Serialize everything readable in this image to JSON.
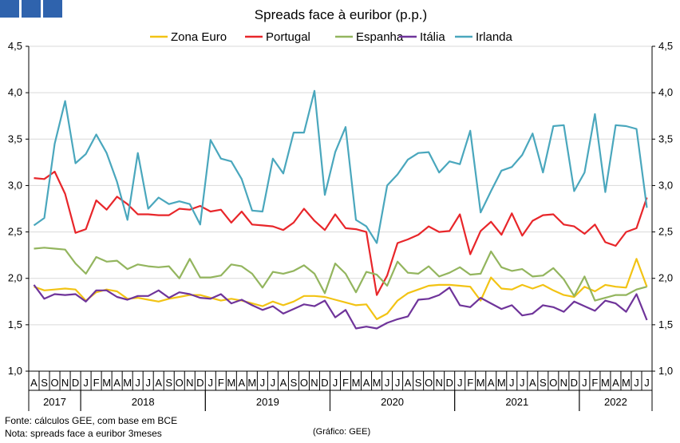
{
  "logo": {
    "colors": [
      "#2f63ad",
      "#2f63ad",
      "#2f63ad"
    ]
  },
  "footer": {
    "source": "Fonte: cálculos GEE, com base em BCE",
    "note": "Nota: spreads face a euribor 3meses",
    "credit": "(Gráfico: GEE)"
  },
  "chart_data": {
    "type": "line",
    "title": "Spreads face à euribor (p.p.)",
    "ylim": [
      1.0,
      4.5
    ],
    "yticks": [
      "1,0",
      "1,5",
      "2,0",
      "2,5",
      "3,0",
      "3,5",
      "4,0",
      "4,5"
    ],
    "grid": true,
    "legend_position": "top",
    "months": [
      "A",
      "S",
      "O",
      "N",
      "D",
      "J",
      "F",
      "M",
      "A",
      "M",
      "J",
      "J",
      "A",
      "S",
      "O",
      "N",
      "D",
      "J",
      "F",
      "M",
      "A",
      "M",
      "J",
      "J",
      "A",
      "S",
      "O",
      "N",
      "D",
      "J",
      "F",
      "M",
      "A",
      "M",
      "J",
      "J",
      "A",
      "S",
      "O",
      "N",
      "D",
      "J",
      "F",
      "M",
      "A",
      "M",
      "J",
      "J",
      "A",
      "S",
      "O",
      "N",
      "D",
      "J",
      "F",
      "M",
      "A",
      "M",
      "J",
      "J"
    ],
    "years": [
      {
        "label": "2017",
        "start": 0,
        "end": 4
      },
      {
        "label": "2018",
        "start": 5,
        "end": 16
      },
      {
        "label": "2019",
        "start": 17,
        "end": 28
      },
      {
        "label": "2020",
        "start": 29,
        "end": 40
      },
      {
        "label": "2021",
        "start": 41,
        "end": 52
      },
      {
        "label": "2022",
        "start": 53,
        "end": 59
      }
    ],
    "series": [
      {
        "name": "Zona Euro",
        "color": "#f2c314",
        "values": [
          1.91,
          1.87,
          1.88,
          1.89,
          1.88,
          1.76,
          1.85,
          1.88,
          1.86,
          1.78,
          1.79,
          1.77,
          1.75,
          1.78,
          1.8,
          1.82,
          1.82,
          1.79,
          1.76,
          1.78,
          1.76,
          1.73,
          1.7,
          1.75,
          1.71,
          1.75,
          1.81,
          1.81,
          1.8,
          1.77,
          1.74,
          1.71,
          1.72,
          1.56,
          1.62,
          1.76,
          1.84,
          1.88,
          1.92,
          1.93,
          1.93,
          1.92,
          1.91,
          1.76,
          2.01,
          1.89,
          1.88,
          1.93,
          1.89,
          1.93,
          1.87,
          1.82,
          1.8,
          1.91,
          1.86,
          1.93,
          1.91,
          1.9,
          2.21,
          1.91
        ]
      },
      {
        "name": "Portugal",
        "color": "#e8262a",
        "values": [
          3.08,
          3.07,
          3.15,
          2.91,
          2.49,
          2.53,
          2.84,
          2.74,
          2.88,
          2.8,
          2.69,
          2.69,
          2.68,
          2.68,
          2.75,
          2.74,
          2.78,
          2.72,
          2.74,
          2.6,
          2.72,
          2.58,
          2.57,
          2.56,
          2.52,
          2.6,
          2.75,
          2.62,
          2.52,
          2.69,
          2.54,
          2.53,
          2.5,
          1.82,
          2.03,
          2.38,
          2.42,
          2.47,
          2.56,
          2.5,
          2.51,
          2.69,
          2.26,
          2.51,
          2.61,
          2.47,
          2.7,
          2.46,
          2.62,
          2.68,
          2.69,
          2.58,
          2.56,
          2.48,
          2.58,
          2.39,
          2.35,
          2.5,
          2.54,
          2.87
        ]
      },
      {
        "name": "Espanha",
        "color": "#93b55e",
        "values": [
          2.32,
          2.33,
          2.32,
          2.31,
          2.16,
          2.05,
          2.23,
          2.18,
          2.19,
          2.1,
          2.15,
          2.13,
          2.12,
          2.13,
          2.0,
          2.21,
          2.01,
          2.01,
          2.03,
          2.15,
          2.13,
          2.05,
          1.9,
          2.07,
          2.05,
          2.08,
          2.14,
          2.05,
          1.84,
          2.16,
          2.05,
          1.85,
          2.07,
          2.04,
          1.92,
          2.18,
          2.06,
          2.05,
          2.13,
          2.02,
          2.06,
          2.12,
          2.04,
          2.05,
          2.29,
          2.12,
          2.08,
          2.1,
          2.02,
          2.03,
          2.11,
          1.99,
          1.81,
          2.02,
          1.76,
          1.79,
          1.82,
          1.82,
          1.88,
          1.91
        ]
      },
      {
        "name": "Itália",
        "color": "#6f349a",
        "values": [
          1.93,
          1.78,
          1.83,
          1.82,
          1.83,
          1.75,
          1.87,
          1.87,
          1.8,
          1.77,
          1.81,
          1.81,
          1.87,
          1.79,
          1.85,
          1.83,
          1.79,
          1.78,
          1.83,
          1.73,
          1.77,
          1.71,
          1.66,
          1.7,
          1.62,
          1.67,
          1.72,
          1.7,
          1.76,
          1.58,
          1.66,
          1.46,
          1.48,
          1.46,
          1.52,
          1.56,
          1.59,
          1.77,
          1.78,
          1.82,
          1.9,
          1.71,
          1.69,
          1.79,
          1.73,
          1.67,
          1.71,
          1.6,
          1.62,
          1.71,
          1.69,
          1.64,
          1.75,
          1.7,
          1.65,
          1.76,
          1.73,
          1.64,
          1.83,
          1.55
        ]
      },
      {
        "name": "Irlanda",
        "color": "#4aa7bd",
        "values": [
          2.57,
          2.65,
          3.45,
          3.91,
          3.24,
          3.34,
          3.55,
          3.35,
          3.04,
          2.63,
          3.35,
          2.75,
          2.87,
          2.8,
          2.83,
          2.8,
          2.58,
          3.49,
          3.29,
          3.26,
          3.07,
          2.73,
          2.72,
          3.29,
          3.13,
          3.57,
          3.57,
          4.02,
          2.9,
          3.36,
          3.63,
          2.63,
          2.56,
          2.38,
          3.0,
          3.12,
          3.28,
          3.35,
          3.36,
          3.14,
          3.26,
          3.23,
          3.59,
          2.71,
          2.94,
          3.16,
          3.2,
          3.33,
          3.56,
          3.14,
          3.64,
          3.65,
          2.94,
          3.14,
          3.77,
          2.93,
          3.65,
          3.64,
          3.61,
          2.76
        ]
      }
    ]
  }
}
